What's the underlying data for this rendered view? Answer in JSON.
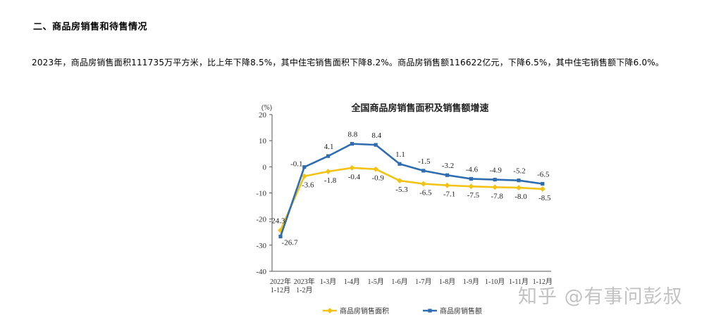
{
  "heading": "二、商品房销售和待售情况",
  "paragraph": "2023年，商品房销售面积111735万平方米，比上年下降8.5%，其中住宅销售面积下降8.2%。商品房销售额116622亿元，下降6.5%，其中住宅销售额下降6.0%。",
  "watermark": "知乎 @有事问彭叔",
  "chart_data": {
    "type": "line",
    "title": "全国商品房销售面积及销售额增速",
    "yunit": "(%)",
    "ylim": [
      -40,
      20
    ],
    "yticks": [
      20,
      10,
      0,
      -10,
      -20,
      -30,
      -40
    ],
    "categories": [
      [
        "2022年",
        "1-12月"
      ],
      [
        "2023年",
        "1-2月"
      ],
      [
        "1-3月"
      ],
      [
        "1-4月"
      ],
      [
        "1-5月"
      ],
      [
        "1-6月"
      ],
      [
        "1-7月"
      ],
      [
        "1-8月"
      ],
      [
        "1-9月"
      ],
      [
        "1-10月"
      ],
      [
        "1-11月"
      ],
      [
        "1-12月"
      ]
    ],
    "series": [
      {
        "name": "商品房销售面积",
        "color": "#f2c314",
        "values": [
          -24.3,
          -3.6,
          -1.8,
          -0.4,
          -0.9,
          -5.3,
          -6.5,
          -7.1,
          -7.5,
          -7.8,
          -8.0,
          -8.5
        ],
        "labels": [
          "-24.3",
          "-3.6",
          "-1.8",
          "-0.4",
          "-0.9",
          "-5.3",
          "-6.5",
          "-7.1",
          "-7.5",
          "-7.8",
          "-8.0",
          "-8.5"
        ]
      },
      {
        "name": "商品房销售额",
        "color": "#2f6db0",
        "values": [
          -26.7,
          -0.1,
          4.1,
          8.8,
          8.4,
          1.1,
          -1.5,
          -3.2,
          -4.6,
          -4.9,
          -5.2,
          -6.5
        ],
        "labels": [
          "-26.7",
          "-0.1",
          "4.1",
          "8.8",
          "8.4",
          "1.1",
          "-1.5",
          "-3.2",
          "-4.6",
          "-4.9",
          "-5.2",
          "-6.5"
        ]
      }
    ],
    "legend_position": "bottom"
  }
}
